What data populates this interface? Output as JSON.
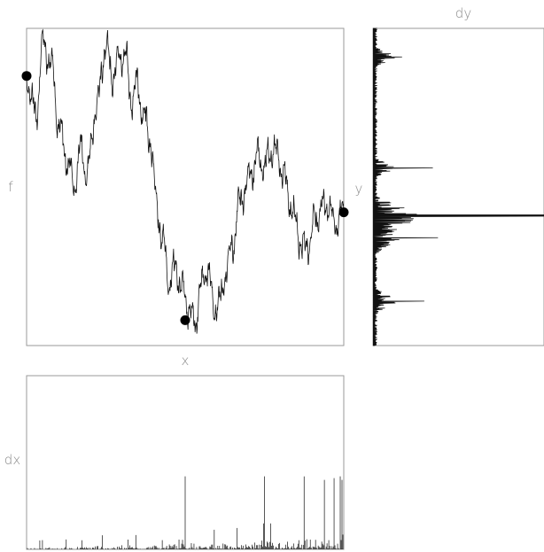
{
  "chart_data": [
    {
      "type": "line",
      "xlabel": "x",
      "ylabel": "f",
      "markers": [
        {
          "x": 0.0,
          "y": 0.85
        },
        {
          "x": 0.5,
          "y": 0.08
        },
        {
          "x": 1.0,
          "y": 0.42
        }
      ],
      "grid": false
    },
    {
      "type": "line",
      "title": "dy",
      "ylabel": "y",
      "orientation": "horizontal",
      "grid": false
    },
    {
      "type": "bar",
      "ylabel": "dx",
      "grid": false
    }
  ],
  "colors": {
    "trace": "#111111",
    "frame": "#9a9a9a",
    "label": "#8a8a8a"
  }
}
